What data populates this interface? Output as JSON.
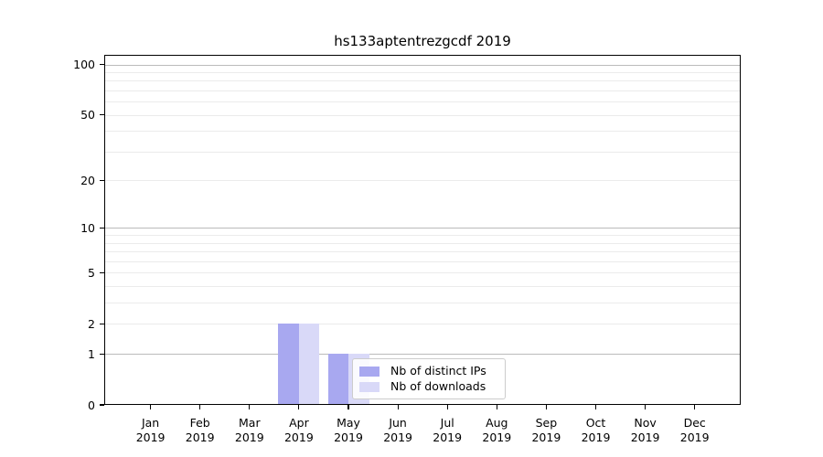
{
  "title": "hs133aptentrezgcdf 2019",
  "chart_data": {
    "type": "bar",
    "title": "hs133aptentrezgcdf 2019",
    "categories": [
      "Jan",
      "Feb",
      "Mar",
      "Apr",
      "May",
      "Jun",
      "Jul",
      "Aug",
      "Sep",
      "Oct",
      "Nov",
      "Dec"
    ],
    "category_year": "2019",
    "series": [
      {
        "name": "Nb of distinct IPs",
        "key": "distinct-ips",
        "color": "#a8a8f0",
        "values": [
          0,
          0,
          0,
          2,
          1,
          0,
          0,
          0,
          0,
          0,
          0,
          0
        ]
      },
      {
        "name": "Nb of downloads",
        "key": "downloads",
        "color": "#d9d9f8",
        "values": [
          0,
          0,
          0,
          2,
          1,
          0,
          0,
          0,
          0,
          0,
          0,
          0
        ]
      }
    ],
    "xlabel": "",
    "ylabel": "",
    "yscale": "log1p",
    "ylim": [
      0,
      114
    ],
    "ytick_values": [
      0,
      1,
      2,
      5,
      10,
      20,
      50,
      100
    ],
    "ytick_labels": [
      "0",
      "1",
      "2",
      "5",
      "10",
      "20",
      "50",
      "100"
    ],
    "minor_gridline_values": [
      2,
      3,
      4,
      5,
      6,
      7,
      8,
      9,
      20,
      30,
      40,
      50,
      60,
      70,
      80,
      90
    ],
    "major_gridline_values": [
      1,
      10,
      100
    ],
    "grid": true,
    "legend_position": "lower-center-inside"
  },
  "legend": {
    "items": [
      {
        "label": "Nb of distinct IPs",
        "color": "#a8a8f0"
      },
      {
        "label": "Nb of downloads",
        "color": "#d9d9f8"
      }
    ]
  },
  "colors": {
    "background": "#ffffff",
    "spine": "#000000",
    "minor_grid": "#ebebeb",
    "major_grid": "#bbbbbb",
    "bar_distinct_ips": "#a8a8f0",
    "bar_downloads": "#d9d9f8",
    "legend_border": "#cccccc",
    "text": "#000000"
  }
}
